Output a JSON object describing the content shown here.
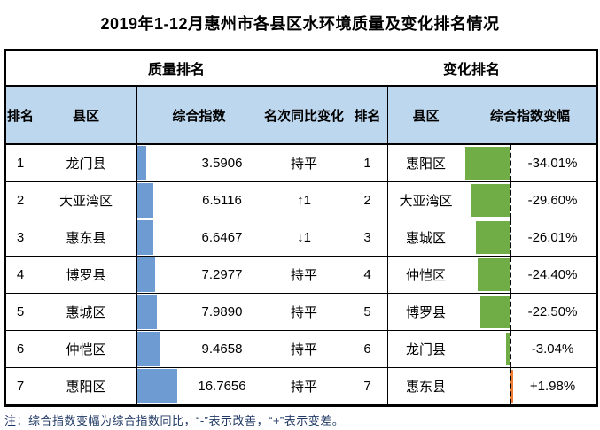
{
  "title": "2019年1-12月惠州市各县区水环境质量及变化排名情况",
  "sections": {
    "quality": "质量排名",
    "variation": "变化排名"
  },
  "quality": {
    "headers": {
      "rank": "排名",
      "district": "县区",
      "index": "综合指数",
      "change": "名次同比变化"
    },
    "rows": [
      {
        "rank": "1",
        "district": "龙门县",
        "index": "3.5906",
        "value": 3.5906,
        "change": "持平"
      },
      {
        "rank": "2",
        "district": "大亚湾区",
        "index": "6.5116",
        "value": 6.5116,
        "change": "↑1"
      },
      {
        "rank": "3",
        "district": "惠东县",
        "index": "6.6467",
        "value": 6.6467,
        "change": "↓1"
      },
      {
        "rank": "4",
        "district": "博罗县",
        "index": "7.2977",
        "value": 7.2977,
        "change": "持平"
      },
      {
        "rank": "5",
        "district": "惠城区",
        "index": "7.9890",
        "value": 7.989,
        "change": "持平"
      },
      {
        "rank": "6",
        "district": "仲恺区",
        "index": "9.4658",
        "value": 9.4658,
        "change": "持平"
      },
      {
        "rank": "7",
        "district": "惠阳区",
        "index": "16.7656",
        "value": 16.7656,
        "change": "持平"
      }
    ]
  },
  "variation": {
    "headers": {
      "rank": "排名",
      "district": "县区",
      "pct": "综合指数变幅"
    },
    "rows": [
      {
        "rank": "1",
        "district": "惠阳区",
        "pct": "-34.01%",
        "value": -34.01
      },
      {
        "rank": "2",
        "district": "大亚湾区",
        "pct": "-29.60%",
        "value": -29.6
      },
      {
        "rank": "3",
        "district": "惠城区",
        "pct": "-26.01%",
        "value": -26.01
      },
      {
        "rank": "4",
        "district": "仲恺区",
        "pct": "-24.40%",
        "value": -24.4
      },
      {
        "rank": "5",
        "district": "博罗县",
        "pct": "-22.50%",
        "value": -22.5
      },
      {
        "rank": "6",
        "district": "龙门县",
        "pct": "-3.04%",
        "value": -3.04
      },
      {
        "rank": "7",
        "district": "惠东县",
        "pct": "+1.98%",
        "value": 1.98
      }
    ]
  },
  "note": "注：综合指数变幅为综合指数同比，“-”表示改善，“+”表示变差。",
  "colors": {
    "header_blue": "#BDD7EE",
    "bar_blue": "#6E9CD2",
    "bar_green": "#70AD47",
    "bar_orange": "#ED7D31",
    "note_color": "#1F3864",
    "border_black": "#000000"
  },
  "chart_data": {
    "type": "bar",
    "title": "2019年1-12月惠州市各县区水环境质量及变化排名情况",
    "series": [
      {
        "name": "综合指数",
        "categories": [
          "龙门县",
          "大亚湾区",
          "惠东县",
          "博罗县",
          "惠城区",
          "仲恺区",
          "惠阳区"
        ],
        "values": [
          3.5906,
          6.5116,
          6.6467,
          7.2977,
          7.989,
          9.4658,
          16.7656
        ]
      },
      {
        "name": "综合指数变幅(%)",
        "categories": [
          "惠阳区",
          "大亚湾区",
          "惠城区",
          "仲恺区",
          "博罗县",
          "龙门县",
          "惠东县"
        ],
        "values": [
          -34.01,
          -29.6,
          -26.01,
          -24.4,
          -22.5,
          -3.04,
          1.98
        ]
      }
    ]
  }
}
